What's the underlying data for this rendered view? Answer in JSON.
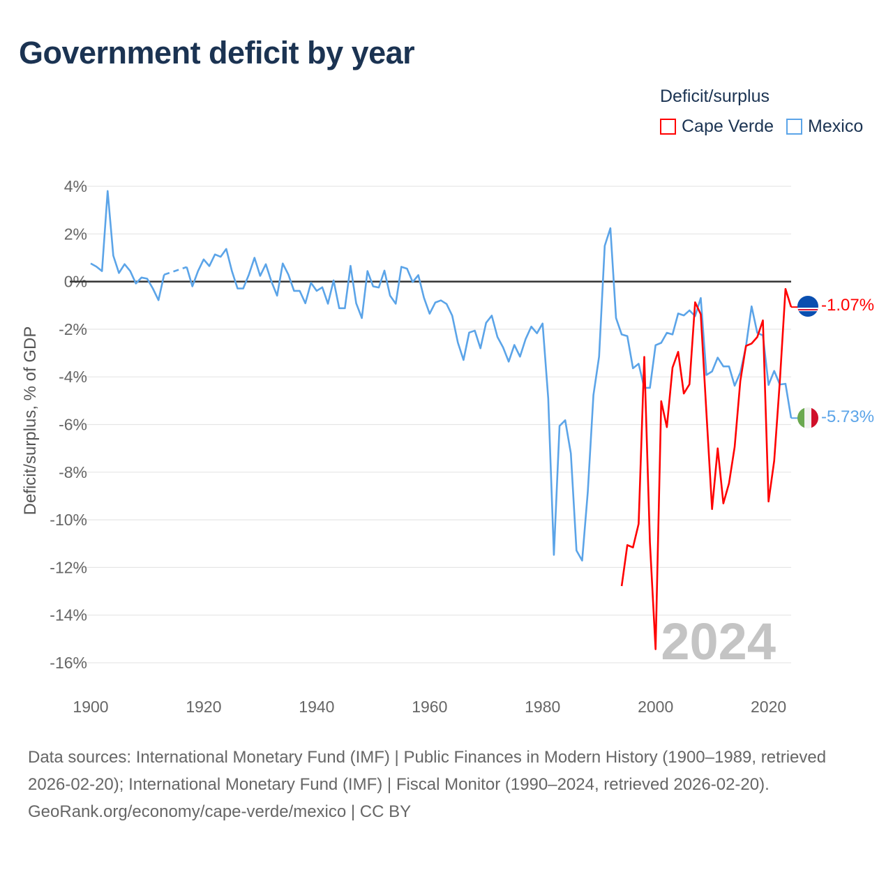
{
  "title": "Government deficit by year",
  "legend": {
    "title": "Deficit/surplus",
    "items": [
      {
        "name": "Cape Verde",
        "color": "#ff0000"
      },
      {
        "name": "Mexico",
        "color": "#5ba4e8"
      }
    ]
  },
  "watermark_year": "2024",
  "end_labels": {
    "cape_verde": "-1.07%",
    "mexico": "-5.73%"
  },
  "footer": {
    "sources": "Data sources: International Monetary Fund (IMF) | Public Finances in Modern History (1900–1989, retrieved 2026-02-20); International Monetary Fund (IMF) | Fiscal Monitor (1990–2024, retrieved 2026-02-20).",
    "credit": "GeoRank.org/economy/cape-verde/mexico | CC BY"
  },
  "chart_data": {
    "type": "line",
    "title": "Government deficit by year",
    "xlabel": "",
    "ylabel": "Deficit/surplus, % of GDP",
    "xlim": [
      1900,
      2024
    ],
    "ylim": [
      -16,
      4
    ],
    "x_ticks": [
      1900,
      1920,
      1940,
      1960,
      1980,
      2000,
      2020
    ],
    "x_tick_labels": [
      "1900",
      "1920",
      "1940",
      "1960",
      "1980",
      "2000",
      "2020"
    ],
    "y_ticks": [
      4,
      2,
      0,
      -2,
      -4,
      -6,
      -8,
      -10,
      -12,
      -14,
      -16
    ],
    "y_tick_labels": [
      "4%",
      "2%",
      "0%",
      "-2%",
      "-4%",
      "-6%",
      "-8%",
      "-10%",
      "-12%",
      "-14%",
      "-16%"
    ],
    "grid": true,
    "legend_position": "top-right",
    "series": [
      {
        "name": "Cape Verde",
        "color": "#ff0000",
        "start_year": 1994,
        "values": [
          -12.78,
          -11.06,
          -11.16,
          -10.17,
          -3.16,
          -10.95,
          -15.43,
          -5.02,
          -6.11,
          -3.61,
          -2.95,
          -4.7,
          -4.31,
          -0.87,
          -1.37,
          -5.5,
          -9.55,
          -7.0,
          -9.31,
          -8.47,
          -6.94,
          -4.18,
          -2.7,
          -2.6,
          -2.33,
          -1.63,
          -9.23,
          -7.52,
          -4.18,
          -0.31,
          -1.07
        ]
      },
      {
        "name": "Mexico",
        "color": "#5ba4e8",
        "start_year": 1900,
        "values": [
          0.76,
          0.63,
          0.44,
          3.8,
          1.09,
          0.36,
          0.73,
          0.44,
          -0.08,
          0.17,
          0.12,
          -0.29,
          -0.78,
          0.29,
          null,
          null,
          null,
          0.61,
          -0.2,
          0.44,
          0.93,
          0.65,
          1.14,
          1.04,
          1.37,
          0.44,
          -0.29,
          -0.29,
          0.29,
          1.0,
          0.24,
          0.73,
          0,
          -0.59,
          0.76,
          0.29,
          -0.39,
          -0.39,
          -0.91,
          -0.05,
          -0.39,
          -0.24,
          -0.93,
          0.05,
          -1.12,
          -1.12,
          0.66,
          -0.91,
          -1.53,
          0.44,
          -0.2,
          -0.25,
          0.46,
          -0.59,
          -0.93,
          0.62,
          0.54,
          -0.02,
          0.27,
          -0.68,
          -1.35,
          -0.88,
          -0.79,
          -0.94,
          -1.43,
          -2.56,
          -3.29,
          -2.14,
          -2.06,
          -2.8,
          -1.73,
          -1.43,
          -2.32,
          -2.76,
          -3.36,
          -2.66,
          -3.15,
          -2.41,
          -1.89,
          -2.17,
          -1.76,
          -4.91,
          -11.47,
          -6.06,
          -5.82,
          -7.21,
          -11.29,
          -11.71,
          -8.83,
          -4.76,
          -3.15,
          1.5,
          2.24,
          -1.53,
          -2.22,
          -2.29,
          -3.64,
          -3.45,
          -4.46,
          -4.46,
          -2.67,
          -2.57,
          -2.15,
          -2.22,
          -1.34,
          -1.42,
          -1.21,
          -1.45,
          -0.69,
          -3.92,
          -3.77,
          -3.19,
          -3.56,
          -3.56,
          -4.37,
          -3.82,
          -2.73,
          -1.04,
          -2.15,
          -2.26,
          -4.34,
          -3.75,
          -4.32,
          -4.29,
          -5.73
        ]
      }
    ]
  }
}
